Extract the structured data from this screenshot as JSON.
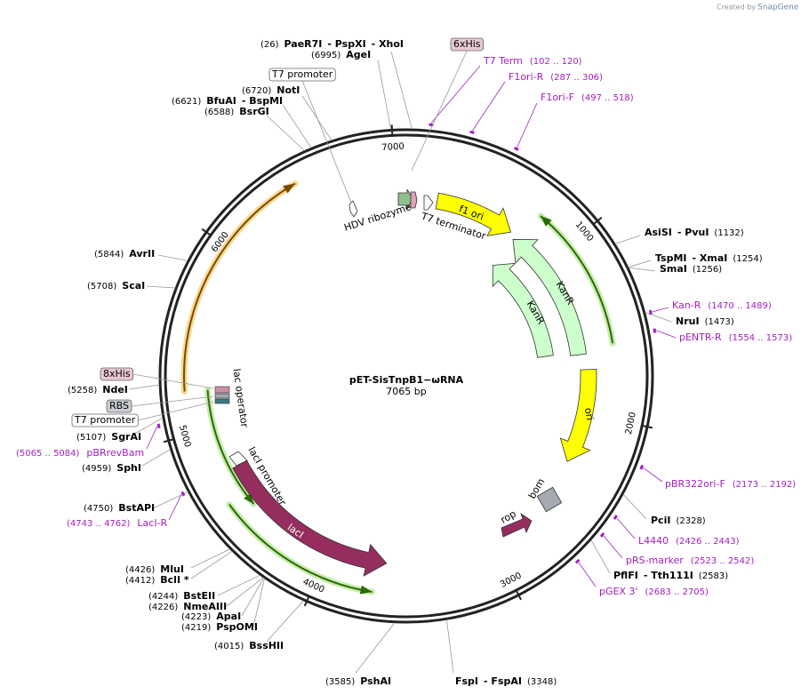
{
  "credit": {
    "text": "Created by",
    "brand": "SnapGene"
  },
  "plasmid": {
    "name": "pET-SisTnpB1−ωRNA",
    "length": 7065,
    "unit": "bp",
    "ticks": [
      1000,
      2000,
      3000,
      4000,
      5000,
      6000,
      7000
    ]
  },
  "sites": [
    {
      "position": "(26)",
      "names": [
        "PaeR7I",
        "- PspXI",
        "- XhoI"
      ]
    },
    {
      "position": "(6995)",
      "names": [
        "AgeI"
      ]
    },
    {
      "position": "(6720)",
      "names": [
        "NotI"
      ]
    },
    {
      "position": "(6621)",
      "names": [
        "BfuAI",
        "- BspMI"
      ]
    },
    {
      "position": "(6588)",
      "names": [
        "BsrGI"
      ]
    },
    {
      "position": "(1132)",
      "names": [
        "AsiSI",
        "- PvuI"
      ]
    },
    {
      "position": "(1254)",
      "names": [
        "TspMI",
        "- XmaI"
      ]
    },
    {
      "position": "(1256)",
      "names": [
        "SmaI"
      ]
    },
    {
      "position": "(1473)",
      "names": [
        "NruI"
      ]
    },
    {
      "position": "(2328)",
      "names": [
        "PciI"
      ]
    },
    {
      "position": "(2583)",
      "names": [
        "PflFI",
        "- Tth111I"
      ]
    },
    {
      "position": "(3348)",
      "names": [
        "FspI",
        "- FspAI"
      ]
    },
    {
      "position": "(3585)",
      "names": [
        "PshAI"
      ]
    },
    {
      "position": "(4015)",
      "names": [
        "BssHII"
      ]
    },
    {
      "position": "(4219)",
      "names": [
        "PspOMI"
      ]
    },
    {
      "position": "(4223)",
      "names": [
        "ApaI"
      ]
    },
    {
      "position": "(4226)",
      "names": [
        "NmeAIII"
      ]
    },
    {
      "position": "(4244)",
      "names": [
        "BstEII"
      ]
    },
    {
      "position": "(4412)",
      "names": [
        "BclI *"
      ]
    },
    {
      "position": "(4426)",
      "names": [
        "MluI"
      ]
    },
    {
      "position": "(4750)",
      "names": [
        "BstAPI"
      ]
    },
    {
      "position": "(4959)",
      "names": [
        "SphI"
      ]
    },
    {
      "position": "(5107)",
      "names": [
        "SgrAI"
      ]
    },
    {
      "position": "(5258)",
      "names": [
        "NdeI"
      ]
    },
    {
      "position": "(5708)",
      "names": [
        "ScaI"
      ]
    },
    {
      "position": "(5844)",
      "names": [
        "AvrII"
      ]
    }
  ],
  "primers": [
    {
      "name": "T7 Term",
      "range": "(102 .. 120)"
    },
    {
      "name": "F1ori-R",
      "range": "(287 .. 306)"
    },
    {
      "name": "F1ori-F",
      "range": "(497 .. 518)"
    },
    {
      "name": "Kan-R",
      "range": "(1470 .. 1489)"
    },
    {
      "name": "pENTR-R",
      "range": "(1554 .. 1573)"
    },
    {
      "name": "pBR322ori-F",
      "range": "(2173 .. 2192)"
    },
    {
      "name": "L4440",
      "range": "(2426 .. 2443)"
    },
    {
      "name": "pRS-marker",
      "range": "(2523 .. 2542)"
    },
    {
      "name": "pGEX 3'",
      "range": "(2683 .. 2705)"
    },
    {
      "name": "pBRrevBam",
      "range": "(5065 .. 5084)"
    },
    {
      "name": "LacI-R",
      "range": "(4743 .. 4762)"
    }
  ],
  "features": [
    {
      "label": "f1 ori"
    },
    {
      "label": "KanR"
    },
    {
      "label": "KanR"
    },
    {
      "label": "ori"
    },
    {
      "label": "bom"
    },
    {
      "label": "rop"
    },
    {
      "label": "lacI"
    },
    {
      "label": "lacI promoter"
    },
    {
      "label": "lac operator"
    },
    {
      "label": "T7 terminator"
    },
    {
      "label": "HDV ribozyme"
    }
  ],
  "boxed_labels": [
    {
      "label": "6xHis"
    },
    {
      "label": "T7 promoter"
    },
    {
      "label": "8xHis"
    },
    {
      "label": "RBS"
    },
    {
      "label": "T7 promoter"
    }
  ]
}
